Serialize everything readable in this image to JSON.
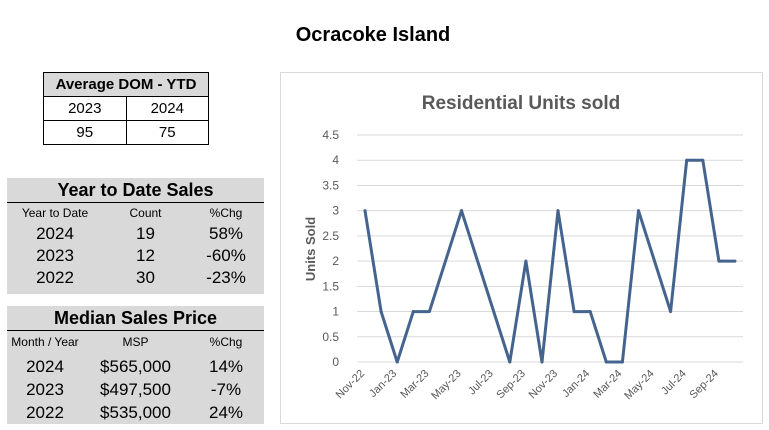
{
  "page_title": "Ocracoke Island",
  "dom_table": {
    "title": "Average DOM - YTD",
    "years": [
      "2023",
      "2024"
    ],
    "values": [
      "95",
      "75"
    ]
  },
  "ytd_sales": {
    "title": "Year to Date Sales",
    "headers": [
      "Year to Date",
      "Count",
      "%Chg"
    ],
    "rows": [
      [
        "2024",
        "19",
        "58%"
      ],
      [
        "2023",
        "12",
        "-60%"
      ],
      [
        "2022",
        "30",
        "-23%"
      ]
    ]
  },
  "median_price": {
    "title": "Median Sales Price",
    "headers": [
      "Month / Year",
      "MSP",
      "%Chg"
    ],
    "rows": [
      [
        "2024",
        "$565,000",
        "14%"
      ],
      [
        "2023",
        "$497,500",
        "-7%"
      ],
      [
        "2022",
        "$535,000",
        "24%"
      ]
    ]
  },
  "chart_data": {
    "type": "line",
    "title": "Residential Units sold",
    "ylabel": "Units Sold",
    "xlabel": "",
    "ylim": [
      0,
      4.5
    ],
    "y_ticks": [
      "0",
      "0.5",
      "1",
      "1.5",
      "2",
      "2.5",
      "3",
      "3.5",
      "4",
      "4.5"
    ],
    "grid": true,
    "line_color": "#44648f",
    "categories": [
      "Nov-22",
      "Dec-22",
      "Jan-23",
      "Feb-23",
      "Mar-23",
      "Apr-23",
      "May-23",
      "Jun-23",
      "Jul-23",
      "Aug-23",
      "Sep-23",
      "Oct-23",
      "Nov-23",
      "Dec-23",
      "Jan-24",
      "Feb-24",
      "Mar-24",
      "Apr-24",
      "May-24",
      "Jun-24",
      "Jul-24",
      "Aug-24",
      "Sep-24",
      "Oct-24"
    ],
    "tick_labels": [
      "Nov-22",
      "",
      "Jan-23",
      "",
      "Mar-23",
      "",
      "May-23",
      "",
      "Jul-23",
      "",
      "Sep-23",
      "",
      "Nov-23",
      "",
      "Jan-24",
      "",
      "Mar-24",
      "",
      "May-24",
      "",
      "Jul-24",
      "",
      "Sep-24",
      ""
    ],
    "values": [
      3,
      1,
      0,
      1,
      1,
      null,
      3,
      null,
      null,
      0,
      2,
      0,
      3,
      1,
      1,
      0,
      0,
      3,
      null,
      1,
      4,
      4,
      2,
      2
    ]
  }
}
